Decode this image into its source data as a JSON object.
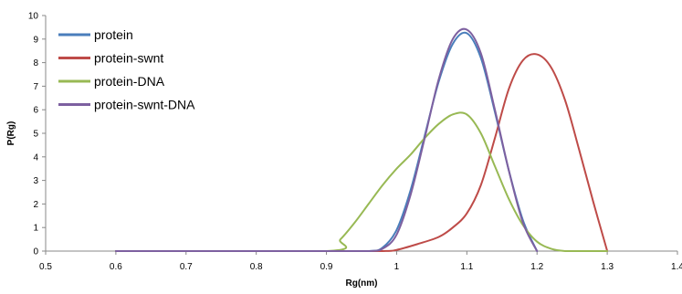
{
  "chart_data": {
    "type": "line",
    "xlabel": "Rg(nm)",
    "ylabel": "P(Rg)",
    "xlim": [
      0.5,
      1.4
    ],
    "ylim": [
      0,
      10
    ],
    "xticks": [
      0.5,
      0.6,
      0.7,
      0.8,
      0.9,
      1.0,
      1.1,
      1.2,
      1.3,
      1.4
    ],
    "xtick_labels": [
      "0.5",
      "0.6",
      "0.7",
      "0.8",
      "0.9",
      "1",
      "1.1",
      "1.2",
      "1.3",
      "1.4"
    ],
    "yticks": [
      0,
      1,
      2,
      3,
      4,
      5,
      6,
      7,
      8,
      9,
      10
    ],
    "ytick_labels": [
      "0",
      "1",
      "2",
      "3",
      "4",
      "5",
      "6",
      "7",
      "8",
      "9",
      "10"
    ],
    "grid": false,
    "legend_placement": "top-left",
    "series": [
      {
        "name": "protein",
        "color": "#4a7ebb",
        "x": [
          0.6,
          0.9,
          0.96,
          0.98,
          1.0,
          1.02,
          1.04,
          1.06,
          1.08,
          1.1,
          1.12,
          1.14,
          1.16,
          1.18,
          1.2
        ],
        "y": [
          0,
          0,
          0,
          0.15,
          0.9,
          2.6,
          4.9,
          7.2,
          8.8,
          9.25,
          8.2,
          5.9,
          3.4,
          1.3,
          0
        ]
      },
      {
        "name": "protein-swnt",
        "color": "#be4b48",
        "x": [
          0.6,
          0.9,
          0.98,
          1.0,
          1.03,
          1.06,
          1.08,
          1.1,
          1.12,
          1.14,
          1.16,
          1.18,
          1.2,
          1.22,
          1.24,
          1.26,
          1.28,
          1.3
        ],
        "y": [
          0,
          0,
          0,
          0.05,
          0.3,
          0.6,
          1.0,
          1.6,
          2.8,
          4.8,
          6.9,
          8.1,
          8.35,
          7.8,
          6.4,
          4.3,
          2.1,
          0
        ]
      },
      {
        "name": "protein-DNA",
        "color": "#98b954",
        "x": [
          0.6,
          0.9,
          0.92,
          0.94,
          0.96,
          0.98,
          1.0,
          1.02,
          1.04,
          1.06,
          1.08,
          1.1,
          1.12,
          1.14,
          1.16,
          1.18,
          1.2,
          1.22,
          1.24,
          1.26,
          1.28,
          1.3
        ],
        "y": [
          0,
          0,
          0.5,
          1.2,
          2.0,
          2.8,
          3.5,
          4.1,
          4.8,
          5.4,
          5.8,
          5.8,
          5.0,
          3.6,
          2.2,
          1.1,
          0.4,
          0.1,
          0,
          0,
          0,
          0
        ]
      },
      {
        "name": "protein-swnt-DNA",
        "color": "#7d60a0",
        "x": [
          0.6,
          0.9,
          0.96,
          0.98,
          1.0,
          1.02,
          1.04,
          1.06,
          1.08,
          1.1,
          1.12,
          1.14,
          1.16,
          1.18,
          1.2
        ],
        "y": [
          0,
          0,
          0,
          0.1,
          0.7,
          2.4,
          4.8,
          7.3,
          9.0,
          9.4,
          8.4,
          6.0,
          3.4,
          1.2,
          0
        ]
      }
    ]
  }
}
